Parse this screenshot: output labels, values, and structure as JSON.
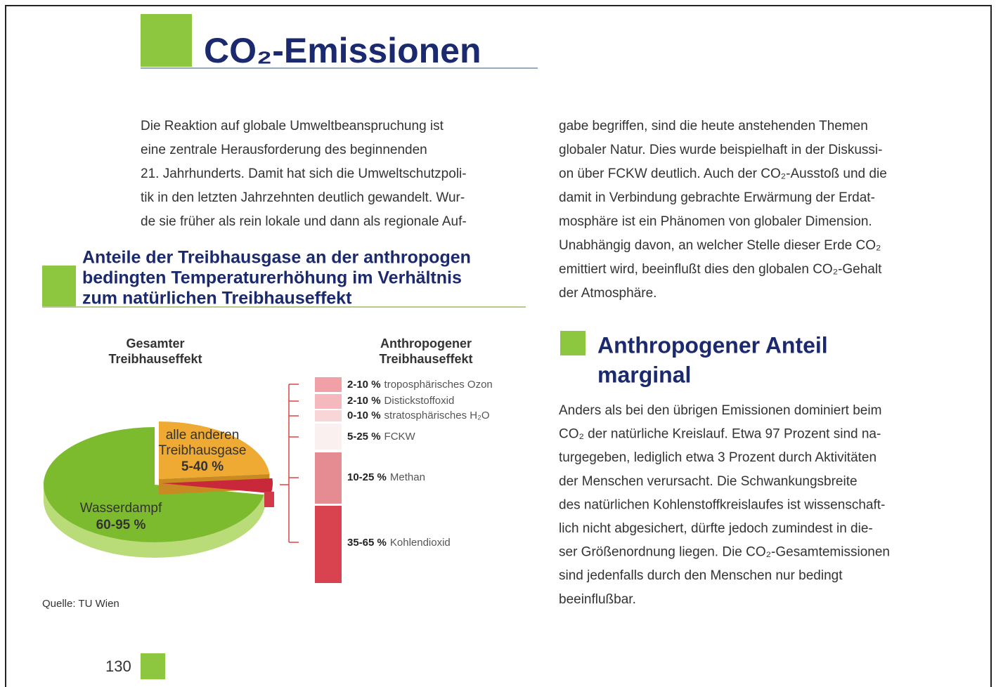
{
  "header": {
    "title": "CO₂-Emissionen"
  },
  "intro": {
    "left_lines": [
      "Die Reaktion auf globale Umweltbeanspruchung ist",
      "eine zentrale Herausforderung des beginnenden",
      "21. Jahrhunderts. Damit hat sich die Umweltschutzpoli-",
      "tik in den letzten Jahrzehnten deutlich gewandelt. Wur-",
      "de sie früher als rein lokale und dann als regionale Auf-"
    ],
    "right_lines": [
      "gabe begriffen, sind die heute anstehenden Themen",
      "globaler Natur. Dies wurde beispielhaft in der Diskussi-",
      "on über FCKW deutlich. Auch der CO₂-Ausstoß und die",
      "damit in Verbindung gebrachte Erwärmung der Erdat-",
      "mosphäre ist ein Phänomen von globaler Dimension.",
      "Unabhängig davon, an welcher Stelle dieser Erde CO₂",
      "emittiert wird, beeinflußt dies den globalen CO₂-Gehalt",
      "der Atmosphäre."
    ]
  },
  "figure": {
    "title_lines": [
      "Anteile der Treibhausgase an der anthropogen",
      "bedingten Temperaturerhöhung im Verhältnis",
      "zum natürlichen Treibhauseffekt"
    ],
    "left_label_lines": [
      "Gesamter",
      "Treibhauseffekt"
    ],
    "right_label_lines": [
      "Anthropogener",
      "Treibhauseffekt"
    ],
    "pie": {
      "slices": [
        {
          "label_lines": [
            "alle anderen",
            "Treibhausgase"
          ],
          "range": "5-40 %"
        },
        {
          "label_lines": [
            "Wasserdampf"
          ],
          "range": "60-95 %"
        }
      ]
    },
    "bar": {
      "segments": [
        {
          "range": "2-10 %",
          "name": "troposphärisches Ozon"
        },
        {
          "range": "2-10 %",
          "name": "Distickstoffoxid"
        },
        {
          "range": "0-10 %",
          "name": "stratosphärisches H₂O"
        },
        {
          "range": "5-25 %",
          "name": "FCKW"
        },
        {
          "range": "10-25 %",
          "name": "Methan"
        },
        {
          "range": "35-65 %",
          "name": "Kohlendioxid"
        }
      ]
    },
    "source": "Quelle: TU Wien"
  },
  "section": {
    "title_lines": [
      "Anthropogener Anteil",
      "marginal"
    ],
    "lines": [
      "Anders als bei den übrigen Emissionen dominiert beim",
      "CO₂ der natürliche Kreislauf. Etwa 97 Prozent sind na-",
      "turgegeben, lediglich etwa 3 Prozent durch Aktivitäten",
      "der Menschen verursacht. Die Schwankungsbreite",
      "des natürlichen Kohlenstoffkreislaufes ist wissenschaft-",
      "lich nicht abgesichert, dürfte jedoch zumindest in  die-",
      "ser Größenordnung liegen. Die CO₂-Gesamtemissionen",
      "sind jedenfalls durch den Menschen nur bedingt",
      "beeinflußbar."
    ]
  },
  "footer": {
    "page_number": 130
  }
}
